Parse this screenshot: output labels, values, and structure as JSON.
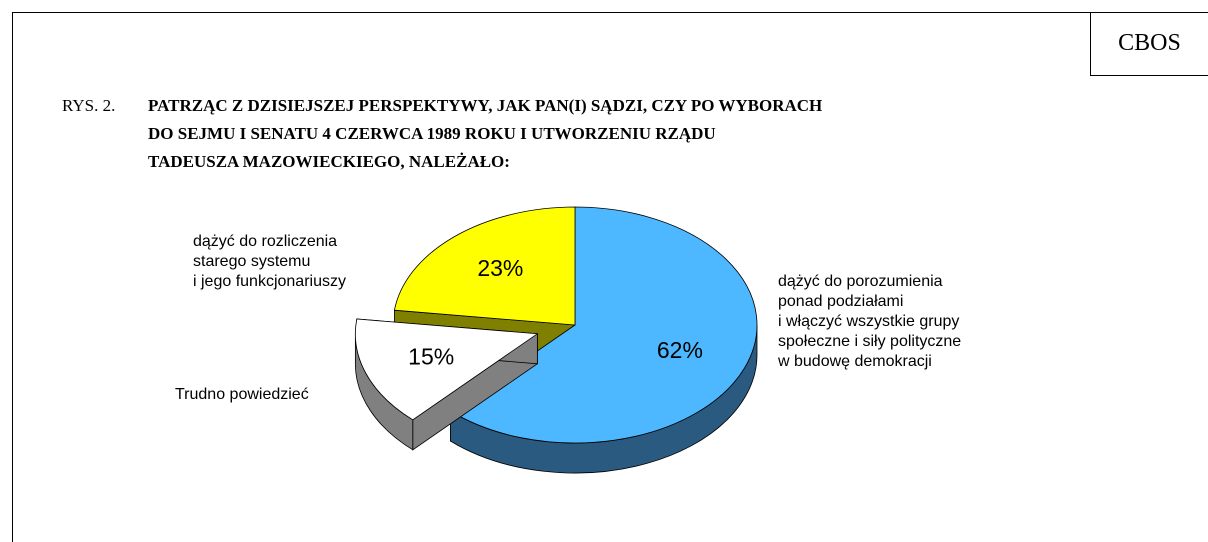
{
  "header": "CBOS",
  "chart_data": {
    "type": "pie",
    "figure_label": "RYS. 2.",
    "title_lines": [
      "PATRZĄC Z DZISIEJSZEJ PERSPEKTYWY, JAK PAN(I) SĄDZI, CZY PO WYBORACH",
      "DO SEJMU I SENATU 4 CZERWCA 1989 ROKU I UTWORZENIU RZĄDU",
      "TADEUSZA MAZOWIECKIEGO, NALEŻAŁO:"
    ],
    "categories": [
      "dążyć do porozumienia\nponad podziałami\ni włączyć wszystkie grupy\nspołeczne i siły polityczne\nw budowę demokracji",
      "Trudno powiedzieć",
      "dążyć do rozliczenia\nstarego systemu\ni jego funkcjonariuszy"
    ],
    "values": [
      62,
      15,
      23
    ],
    "value_labels": [
      "62%",
      "15%",
      "23%"
    ],
    "colors": [
      "#4db8ff",
      "#ffffff",
      "#ffff00"
    ],
    "side_colors": [
      "#2a5a80",
      "#808080",
      "#808000"
    ],
    "exploded": [
      false,
      true,
      false
    ]
  }
}
